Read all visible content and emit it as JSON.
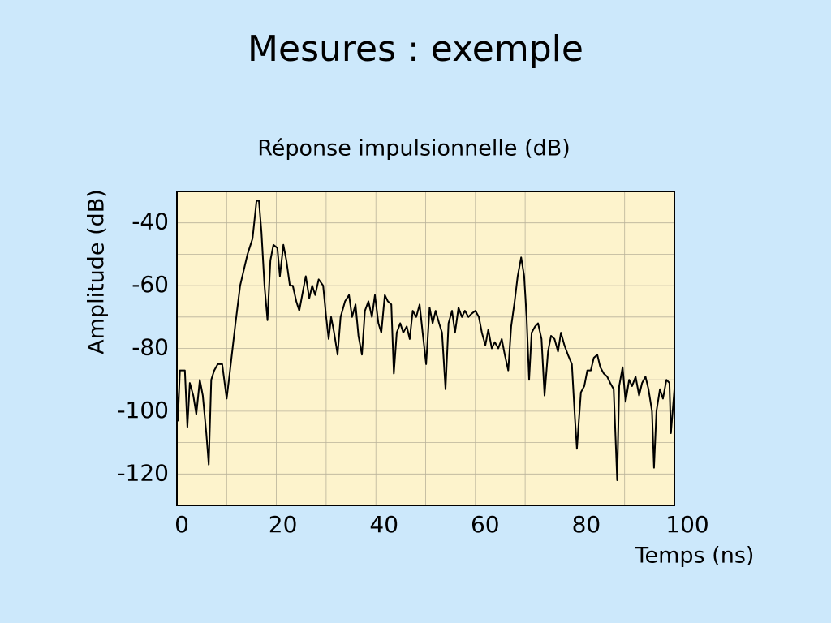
{
  "slide_title": "Mesures : exemple",
  "chart_data": {
    "type": "line",
    "title": "Réponse impulsionnelle (dB)",
    "x_label": "Temps (ns)",
    "y_label": "Amplitude (dB)",
    "color": "#000000",
    "xlim": [
      0,
      100
    ],
    "ylim": [
      -130,
      -30
    ],
    "xticks": [
      0,
      20,
      40,
      60,
      80,
      100
    ],
    "yticks": [
      -40,
      -60,
      -80,
      -100,
      -120
    ],
    "xgrid": [
      10,
      20,
      30,
      40,
      50,
      60,
      70,
      80,
      90
    ],
    "ygrid": [
      -40,
      -50,
      -60,
      -70,
      -80,
      -90,
      -100,
      -110,
      -120
    ],
    "x": [
      0,
      0.2,
      0.6,
      1.6,
      2.1,
      2.6,
      3.3,
      3.9,
      4.6,
      5.2,
      5.9,
      6.4,
      6.9,
      7.5,
      8.2,
      9.1,
      10,
      10.6,
      11.7,
      12.7,
      14.2,
      15.2,
      16.0,
      16.5,
      17.0,
      17.6,
      18.2,
      18.8,
      19.4,
      20.2,
      20.7,
      21.4,
      22.0,
      22.7,
      23.3,
      24.0,
      24.6,
      25.3,
      25.9,
      26.6,
      27.2,
      27.8,
      28.5,
      29.4,
      30.0,
      30.5,
      31.0,
      31.6,
      32.3,
      32.9,
      33.8,
      34.6,
      35.2,
      35.9,
      36.5,
      37.2,
      37.8,
      38.5,
      39.2,
      39.8,
      40.5,
      41.1,
      41.8,
      42.4,
      43.1,
      43.6,
      44.2,
      44.9,
      45.5,
      46.2,
      46.8,
      47.4,
      48.1,
      48.8,
      49.4,
      50.1,
      50.8,
      51.4,
      52.0,
      52.7,
      53.3,
      54.0,
      54.6,
      55.3,
      55.9,
      56.6,
      57.3,
      57.9,
      58.6,
      59.2,
      60.0,
      60.7,
      61.3,
      62.0,
      62.6,
      63.3,
      63.9,
      64.6,
      65.3,
      65.9,
      66.6,
      67.2,
      67.9,
      68.5,
      69.2,
      69.8,
      70.3,
      70.8,
      71.3,
      72.0,
      72.6,
      73.3,
      73.9,
      74.6,
      75.2,
      75.9,
      76.6,
      77.2,
      77.9,
      78.6,
      79.4,
      80.0,
      80.4,
      80.8,
      81.2,
      81.9,
      82.5,
      83.2,
      83.8,
      84.5,
      85.1,
      85.8,
      86.5,
      87.1,
      87.8,
      88.5,
      88.9,
      89.6,
      90.2,
      90.9,
      91.5,
      92.2,
      92.9,
      93.5,
      94.2,
      94.8,
      95.5,
      95.9,
      96.4,
      97.1,
      97.7,
      98.4,
      99.0,
      99.3,
      100
    ],
    "values": [
      -93,
      -103,
      -87,
      -87,
      -105,
      -91,
      -95,
      -101,
      -90,
      -95,
      -107,
      -117,
      -90,
      -87,
      -85,
      -85,
      -96,
      -88,
      -73,
      -60,
      -50,
      -45,
      -33,
      -33,
      -43,
      -60,
      -71,
      -52,
      -47,
      -48,
      -57,
      -47,
      -52,
      -60,
      -60,
      -65,
      -68,
      -62,
      -57,
      -64,
      -60,
      -63,
      -58,
      -60,
      -70,
      -77,
      -70,
      -75,
      -82,
      -70,
      -65,
      -63,
      -70,
      -66,
      -76,
      -82,
      -68,
      -65,
      -70,
      -63,
      -72,
      -75,
      -63,
      -65,
      -66,
      -88,
      -75,
      -72,
      -75,
      -73,
      -77,
      -68,
      -70,
      -66,
      -75,
      -85,
      -67,
      -72,
      -68,
      -72,
      -75,
      -93,
      -72,
      -68,
      -75,
      -67,
      -70,
      -68,
      -70,
      -69,
      -68,
      -70,
      -75,
      -79,
      -74,
      -80,
      -78,
      -80,
      -77,
      -82,
      -87,
      -73,
      -65,
      -57,
      -51,
      -57,
      -70,
      -90,
      -75,
      -73,
      -72,
      -77,
      -95,
      -81,
      -76,
      -77,
      -81,
      -75,
      -79,
      -82,
      -85,
      -102,
      -112,
      -103,
      -94,
      -92,
      -87,
      -87,
      -83,
      -82,
      -86,
      -88,
      -89,
      -91,
      -93,
      -122,
      -92,
      -86,
      -97,
      -90,
      -92,
      -89,
      -95,
      -91,
      -89,
      -93,
      -100,
      -118,
      -100,
      -93,
      -96,
      -90,
      -91,
      -107,
      -93
    ]
  }
}
